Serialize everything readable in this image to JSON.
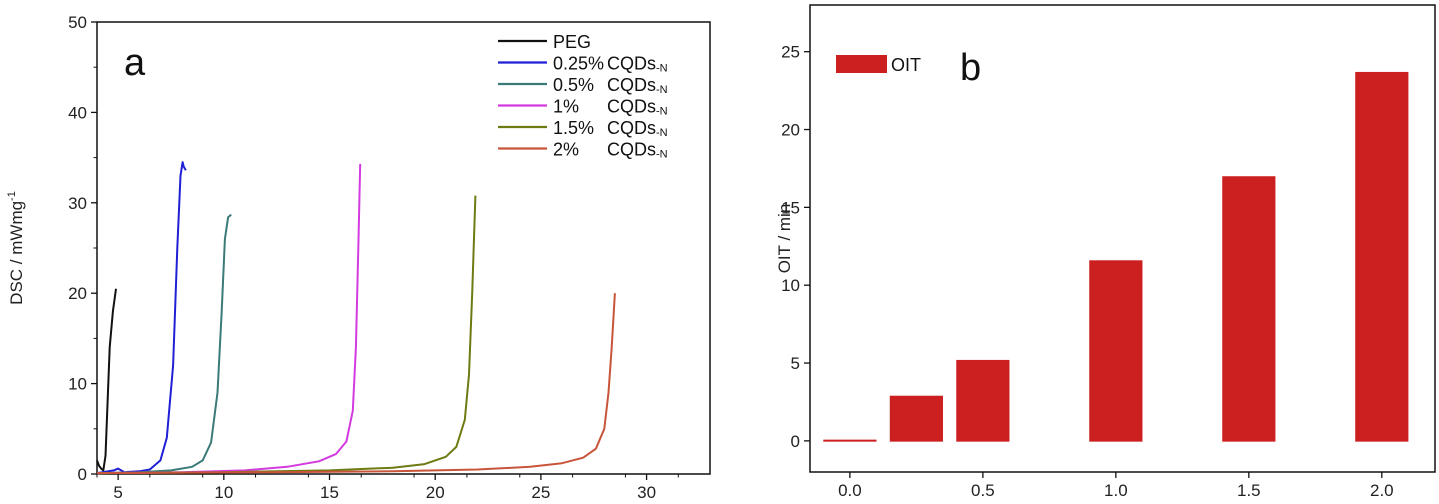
{
  "chart_data": [
    {
      "panel": "a",
      "type": "line",
      "xlabel": "",
      "ylabel": "DSC / mWmg",
      "ylabel_sup": "-1",
      "xlim": [
        4,
        33
      ],
      "ylim": [
        0,
        50
      ],
      "xticks": [
        5,
        10,
        15,
        20,
        25,
        30
      ],
      "yticks": [
        0,
        10,
        20,
        30,
        40,
        50
      ],
      "legend_position": "top-right",
      "series": [
        {
          "name": "PEG",
          "pct": "",
          "suffix": "",
          "color": "#111111",
          "points": [
            [
              4.0,
              1.5
            ],
            [
              4.1,
              0.9
            ],
            [
              4.2,
              0.6
            ],
            [
              4.3,
              0.4
            ],
            [
              4.4,
              2.0
            ],
            [
              4.5,
              8.0
            ],
            [
              4.6,
              14.0
            ],
            [
              4.75,
              18.0
            ],
            [
              4.9,
              20.5
            ]
          ]
        },
        {
          "name": "0.25%",
          "pct": "0.25%",
          "suffix": "CQDs",
          "sub": "-N",
          "color": "#1f1fd6",
          "points": [
            [
              4.0,
              0.1
            ],
            [
              4.8,
              0.4
            ],
            [
              5.0,
              0.6
            ],
            [
              5.3,
              0.2
            ],
            [
              6.0,
              0.3
            ],
            [
              6.5,
              0.5
            ],
            [
              7.0,
              1.5
            ],
            [
              7.3,
              4.0
            ],
            [
              7.6,
              12.0
            ],
            [
              7.8,
              25.0
            ],
            [
              7.95,
              33.0
            ],
            [
              8.05,
              34.5
            ],
            [
              8.1,
              34.0
            ],
            [
              8.2,
              33.6
            ]
          ]
        },
        {
          "name": "0.5%",
          "pct": "0.5%",
          "suffix": "CQDs",
          "sub": "-N",
          "color": "#3a7a78",
          "points": [
            [
              4.0,
              0.1
            ],
            [
              6.0,
              0.2
            ],
            [
              7.5,
              0.4
            ],
            [
              8.5,
              0.8
            ],
            [
              9.0,
              1.5
            ],
            [
              9.4,
              3.5
            ],
            [
              9.7,
              9.0
            ],
            [
              9.9,
              18.0
            ],
            [
              10.05,
              26.0
            ],
            [
              10.2,
              28.4
            ],
            [
              10.35,
              28.7
            ]
          ]
        },
        {
          "name": "1%",
          "pct": "1%",
          "suffix": "CQDs",
          "sub": "-N",
          "color": "#d33be0",
          "points": [
            [
              4.0,
              0.1
            ],
            [
              8.0,
              0.2
            ],
            [
              11.0,
              0.4
            ],
            [
              13.0,
              0.8
            ],
            [
              14.5,
              1.4
            ],
            [
              15.3,
              2.2
            ],
            [
              15.8,
              3.6
            ],
            [
              16.1,
              7.0
            ],
            [
              16.25,
              14.0
            ],
            [
              16.35,
              24.0
            ],
            [
              16.45,
              34.3
            ]
          ]
        },
        {
          "name": "1.5%",
          "pct": "1.5%",
          "suffix": "CQDs",
          "sub": "-N",
          "color": "#6e7a12",
          "points": [
            [
              4.0,
              0.1
            ],
            [
              10.0,
              0.2
            ],
            [
              15.0,
              0.4
            ],
            [
              18.0,
              0.7
            ],
            [
              19.5,
              1.1
            ],
            [
              20.5,
              1.9
            ],
            [
              21.0,
              3.0
            ],
            [
              21.4,
              6.0
            ],
            [
              21.6,
              11.0
            ],
            [
              21.75,
              20.0
            ],
            [
              21.9,
              30.8
            ]
          ]
        },
        {
          "name": "2%",
          "pct": "2%",
          "suffix": "CQDs",
          "sub": "-N",
          "color": "#c8553a",
          "points": [
            [
              4.0,
              0.1
            ],
            [
              12.0,
              0.2
            ],
            [
              18.0,
              0.3
            ],
            [
              22.0,
              0.5
            ],
            [
              24.5,
              0.8
            ],
            [
              26.0,
              1.2
            ],
            [
              27.0,
              1.8
            ],
            [
              27.6,
              2.8
            ],
            [
              28.0,
              5.0
            ],
            [
              28.2,
              9.0
            ],
            [
              28.35,
              14.0
            ],
            [
              28.5,
              20.0
            ]
          ]
        }
      ]
    },
    {
      "panel": "b",
      "type": "bar",
      "xlabel": "",
      "ylabel": "OIT / min",
      "xlim": [
        -0.15,
        2.2
      ],
      "ylim": [
        -2,
        28
      ],
      "xticks": [
        0.0,
        0.5,
        1.0,
        1.5,
        2.0
      ],
      "xtick_labels": [
        "0.0",
        "0.5",
        "1.0",
        "1.5",
        "2.0"
      ],
      "yticks": [
        0,
        5,
        10,
        15,
        20,
        25
      ],
      "legend_position": "top-left",
      "bar_color": "#cc1f1f",
      "legend": "OIT",
      "x": [
        0.0,
        0.25,
        0.5,
        1.0,
        1.5,
        2.0
      ],
      "values": [
        0.0,
        2.9,
        5.2,
        11.6,
        17.0,
        23.7
      ]
    }
  ],
  "labels": {
    "panel_a": "a",
    "panel_b": "b",
    "legend_b": "OIT"
  }
}
